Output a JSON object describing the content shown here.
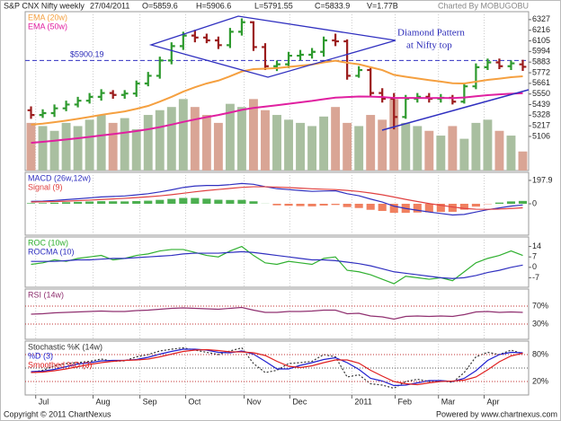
{
  "header": {
    "date": "27/04/2011",
    "open": "O=5859.6",
    "high": "H=5906.6",
    "low": "L=5791.55",
    "close": "C=5833.9",
    "volume": "V=1.77B",
    "credit": "Charted By MOBUGOBU"
  },
  "footer": {
    "copyright": "Copyright © 2011 ChartNexus",
    "powered": "Powered by www.chartnexus.com"
  },
  "chart_data": [
    {
      "type": "ohlc",
      "title": "S&P CNX Nifty weekly",
      "up_color": "#2e9a2e",
      "down_color": "#9b1c1c",
      "open": [
        5380,
        5330,
        5350,
        5400,
        5440,
        5480,
        5520,
        5560,
        5540,
        5555,
        5660,
        5740,
        5900,
        6050,
        6160,
        6140,
        6110,
        6060,
        6200,
        6300,
        6040,
        5840,
        5860,
        5950,
        5960,
        5990,
        6110,
        6100,
        5740,
        5800,
        5560,
        5500,
        5310,
        5500,
        5520,
        5500,
        5510,
        5470,
        5630,
        5830,
        5880,
        5840,
        5859.6
      ],
      "high": [
        5420,
        5390,
        5440,
        5480,
        5520,
        5560,
        5600,
        5590,
        5590,
        5690,
        5780,
        5940,
        6090,
        6200,
        6220,
        6180,
        6150,
        6240,
        6340,
        6310,
        6080,
        5900,
        5990,
        6010,
        6030,
        6150,
        6180,
        6120,
        5840,
        5830,
        5610,
        5560,
        5540,
        5560,
        5560,
        5550,
        5540,
        5660,
        5870,
        5920,
        5920,
        5900,
        5906.6
      ],
      "low": [
        5290,
        5300,
        5310,
        5370,
        5410,
        5450,
        5480,
        5500,
        5500,
        5520,
        5630,
        5710,
        5860,
        6010,
        6090,
        6080,
        6020,
        6030,
        6160,
        6000,
        5800,
        5790,
        5820,
        5900,
        5920,
        5940,
        6050,
        5700,
        5720,
        5530,
        5460,
        5180,
        5290,
        5460,
        5460,
        5460,
        5440,
        5450,
        5600,
        5800,
        5810,
        5800,
        5791.55
      ],
      "close": [
        5330,
        5350,
        5400,
        5440,
        5480,
        5520,
        5560,
        5540,
        5555,
        5660,
        5740,
        5900,
        6050,
        6160,
        6140,
        6110,
        6060,
        6200,
        6300,
        6040,
        5840,
        5860,
        5950,
        5960,
        5990,
        6110,
        6100,
        5740,
        5800,
        5560,
        5500,
        5310,
        5500,
        5520,
        5500,
        5510,
        5470,
        5630,
        5830,
        5880,
        5840,
        5870,
        5833.9
      ],
      "volume": {
        "vlim": [
          0,
          100
        ],
        "up_color": "#a9bfa0",
        "down_color": "#d9a595",
        "values": [
          30,
          28,
          25,
          30,
          28,
          32,
          35,
          30,
          33,
          26,
          35,
          38,
          40,
          45,
          40,
          35,
          30,
          42,
          40,
          45,
          38,
          35,
          32,
          30,
          28,
          34,
          40,
          30,
          28,
          35,
          32,
          45,
          30,
          28,
          25,
          22,
          28,
          20,
          30,
          32,
          25,
          22,
          12
        ]
      },
      "series": [
        {
          "name": "EMA (20w)",
          "color": "#f5a040",
          "values": [
            5230,
            5240,
            5255,
            5272,
            5290,
            5310,
            5332,
            5350,
            5368,
            5395,
            5425,
            5470,
            5520,
            5575,
            5620,
            5660,
            5690,
            5735,
            5785,
            5810,
            5815,
            5820,
            5833,
            5845,
            5858,
            5880,
            5898,
            5876,
            5860,
            5830,
            5800,
            5750,
            5730,
            5712,
            5695,
            5680,
            5662,
            5660,
            5678,
            5697,
            5710,
            5725,
            5735
          ]
        },
        {
          "name": "EMA (50w)",
          "color": "#e020a0",
          "values": [
            5040,
            5050,
            5062,
            5075,
            5088,
            5102,
            5117,
            5131,
            5146,
            5163,
            5181,
            5204,
            5230,
            5258,
            5284,
            5308,
            5330,
            5356,
            5384,
            5404,
            5418,
            5432,
            5448,
            5463,
            5478,
            5496,
            5512,
            5518,
            5524,
            5522,
            5518,
            5508,
            5508,
            5508,
            5507,
            5508,
            5507,
            5513,
            5526,
            5538,
            5546,
            5553,
            5558
          ]
        }
      ],
      "annotation": [
        "Diamond Pattern",
        "at Nifty top"
      ],
      "hlines": [
        {
          "value": 5900.19,
          "label": "$5900.19"
        }
      ],
      "ylim": [
        4750,
        6410
      ],
      "yticks": [
        5106,
        5217,
        5328,
        5439,
        5550,
        5661,
        5772,
        5883,
        5994,
        6105,
        6216,
        6327
      ],
      "grid": false
    },
    {
      "type": "line",
      "ylim": [
        -266,
        266
      ],
      "yticks": [
        0,
        197.9
      ],
      "grid": false,
      "series": [
        {
          "style": "bar",
          "up_color": "#4caf50",
          "down_color": "#f08060",
          "values": [
            5,
            5,
            9,
            13,
            16,
            19,
            22,
            21,
            20,
            23,
            26,
            33,
            41,
            49,
            49,
            43,
            34,
            32,
            33,
            21,
            1,
            -13,
            -17,
            -20,
            -22,
            -15,
            -10,
            -28,
            -36,
            -51,
            -61,
            -77,
            -77,
            -74,
            -72,
            -69,
            -68,
            -50,
            -24,
            -3,
            10,
            20,
            24
          ]
        },
        {
          "name": "MACD (26w,12w)",
          "color": "#3030c0",
          "values": [
            20,
            22,
            28,
            35,
            42,
            50,
            58,
            62,
            66,
            75,
            85,
            100,
            118,
            138,
            150,
            155,
            155,
            162,
            172,
            165,
            145,
            128,
            120,
            112,
            105,
            108,
            110,
            85,
            68,
            40,
            15,
            -20,
            -40,
            -55,
            -70,
            -82,
            -95,
            -90,
            -70,
            -50,
            -35,
            -20,
            -10
          ]
        },
        {
          "name": "Signal (9)",
          "color": "#e04040",
          "values": [
            15,
            17,
            19,
            22,
            26,
            31,
            36,
            41,
            46,
            52,
            59,
            67,
            77,
            89,
            101,
            112,
            121,
            130,
            139,
            144,
            144,
            141,
            137,
            132,
            127,
            123,
            120,
            113,
            104,
            91,
            76,
            57,
            37,
            19,
            2,
            -13,
            -27,
            -40,
            -46,
            -47,
            -45,
            -40,
            -34
          ]
        }
      ]
    },
    {
      "type": "line",
      "ylim": [
        -13.4,
        20.4
      ],
      "yticks": [
        -7,
        0,
        7,
        14
      ],
      "grid": false,
      "series": [
        {
          "name": "ROC (10w)",
          "color": "#30b030",
          "values": [
            2,
            3,
            5,
            4,
            6,
            7,
            8,
            5,
            6,
            8,
            9,
            11,
            12,
            12,
            10,
            8,
            7,
            11,
            14,
            8,
            3,
            2,
            4,
            3,
            2,
            6,
            7,
            -2,
            -3,
            -5,
            -8,
            -11,
            -6,
            -7,
            -8,
            -7,
            -9,
            -3,
            3,
            6,
            8,
            11,
            8
          ]
        },
        {
          "name": "ROCMA (10)",
          "color": "#3030c0",
          "values": [
            4,
            4,
            4,
            4.5,
            5,
            5,
            5.5,
            6,
            6,
            6.5,
            7,
            7.5,
            8,
            9,
            9.5,
            9.5,
            9.5,
            10,
            10.5,
            10,
            9,
            8,
            7,
            6,
            5,
            5,
            4.5,
            3.5,
            2.5,
            1,
            -1,
            -3,
            -4,
            -5,
            -6,
            -7,
            -7.5,
            -7,
            -5.5,
            -3.5,
            -2,
            0,
            1.5
          ]
        }
      ]
    },
    {
      "type": "line",
      "ylim": [
        -4,
        108
      ],
      "yticks": [
        {
          "value": 30,
          "label": "30%"
        },
        {
          "value": 70,
          "label": "70%"
        }
      ],
      "grid": true,
      "series": [
        {
          "name": "RSI (14w)",
          "color": "#903070",
          "values": [
            52,
            53,
            55,
            56,
            57,
            58,
            59,
            58,
            58,
            60,
            61,
            63,
            65,
            66,
            65,
            64,
            63,
            65,
            67,
            61,
            56,
            56,
            58,
            58,
            59,
            61,
            61,
            53,
            54,
            48,
            46,
            41,
            47,
            48,
            47,
            48,
            47,
            51,
            57,
            58,
            56,
            57,
            56
          ]
        }
      ]
    },
    {
      "type": "line",
      "ylim": [
        -10,
        110
      ],
      "yticks": [
        {
          "value": 20,
          "label": "20%"
        },
        {
          "value": 80,
          "label": "80%"
        }
      ],
      "grid": true,
      "hlines": [
        50
      ],
      "xlim": [
        -0.5,
        42.5
      ],
      "xticks": [
        {
          "value": 0.4,
          "label": "Jul"
        },
        {
          "value": 5.3,
          "label": "Aug"
        },
        {
          "value": 9.3,
          "label": "Sep"
        },
        {
          "value": 13.2,
          "label": "Oct"
        },
        {
          "value": 18.2,
          "label": "Nov"
        },
        {
          "value": 22.1,
          "label": "Dec"
        },
        {
          "value": 27.4,
          "label": "2011"
        },
        {
          "value": 31.1,
          "label": "Feb"
        },
        {
          "value": 34.8,
          "label": "Mar"
        },
        {
          "value": 38.7,
          "label": "Apr"
        }
      ],
      "series": [
        {
          "name": "Stochastic %K (14w)",
          "color": "#333333",
          "style": "dotted",
          "values": [
            40,
            45,
            55,
            60,
            62,
            65,
            70,
            65,
            66,
            75,
            80,
            88,
            92,
            95,
            90,
            85,
            80,
            88,
            95,
            60,
            40,
            45,
            60,
            62,
            65,
            80,
            75,
            30,
            35,
            15,
            12,
            5,
            20,
            25,
            20,
            22,
            18,
            40,
            75,
            85,
            80,
            90,
            82
          ]
        },
        {
          "name": "%D (3)",
          "color": "#2020d0",
          "values": [
            42,
            43,
            47,
            53,
            59,
            62,
            66,
            67,
            67,
            69,
            74,
            81,
            87,
            92,
            92,
            90,
            85,
            84,
            88,
            81,
            65,
            48,
            48,
            56,
            62,
            69,
            73,
            62,
            47,
            27,
            21,
            11,
            12,
            17,
            22,
            22,
            20,
            27,
            44,
            67,
            80,
            85,
            84
          ]
        },
        {
          "name": "Smoothed %D (3)",
          "color": "#e02020",
          "values": [
            40,
            41,
            44,
            48,
            53,
            58,
            62,
            65,
            67,
            68,
            70,
            75,
            81,
            87,
            90,
            91,
            89,
            86,
            86,
            84,
            78,
            65,
            54,
            51,
            55,
            62,
            68,
            68,
            61,
            45,
            32,
            20,
            15,
            13,
            17,
            20,
            21,
            23,
            30,
            46,
            64,
            77,
            83
          ]
        }
      ]
    }
  ]
}
